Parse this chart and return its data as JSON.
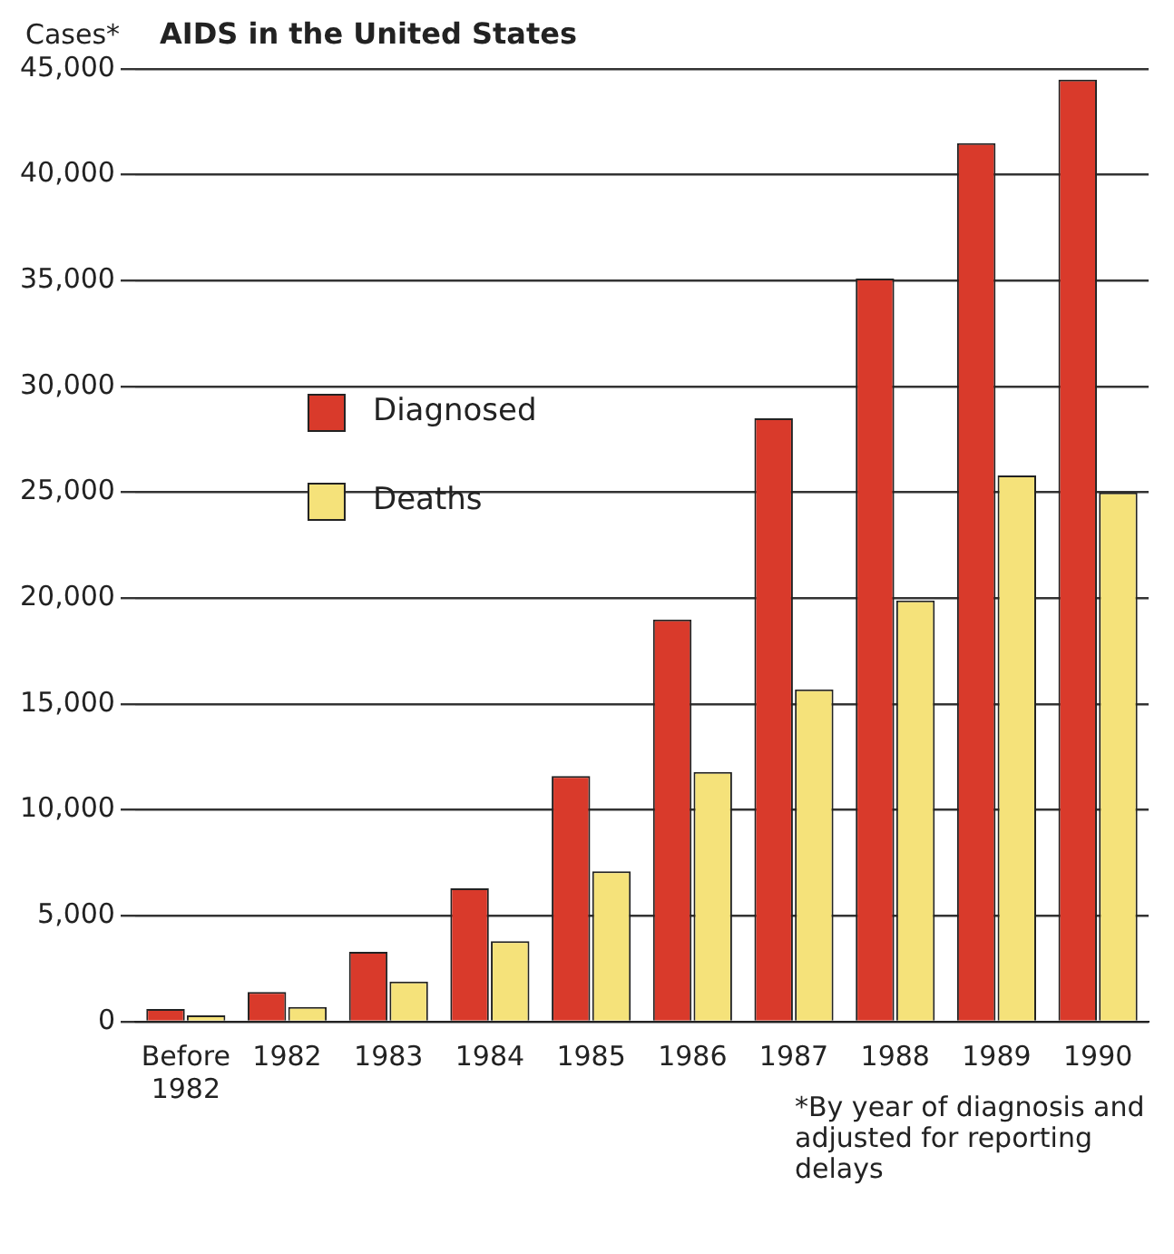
{
  "chart_data": {
    "type": "bar",
    "title": "AIDS in the United States",
    "ylabel": "Cases*",
    "categories": [
      "Before 1982",
      "1982",
      "1983",
      "1984",
      "1985",
      "1986",
      "1987",
      "1988",
      "1989",
      "1990"
    ],
    "series": [
      {
        "name": "Diagnosed",
        "color": "#d93a2b",
        "values": [
          600,
          1400,
          3300,
          6300,
          11600,
          19000,
          28500,
          35100,
          41500,
          44500
        ]
      },
      {
        "name": "Deaths",
        "color": "#f5e27a",
        "values": [
          300,
          700,
          1900,
          3800,
          7100,
          11800,
          15700,
          19900,
          25800,
          25000
        ]
      }
    ],
    "ylim": [
      0,
      45000
    ],
    "yticks": [
      {
        "value": 0,
        "label": "0"
      },
      {
        "value": 5000,
        "label": "5,000"
      },
      {
        "value": 10000,
        "label": "10,000"
      },
      {
        "value": 15000,
        "label": "15,000"
      },
      {
        "value": 20000,
        "label": "20,000"
      },
      {
        "value": 25000,
        "label": "25,000"
      },
      {
        "value": 30000,
        "label": "30,000"
      },
      {
        "value": 35000,
        "label": "35,000"
      },
      {
        "value": 40000,
        "label": "40,000"
      },
      {
        "value": 45000,
        "label": "45,000"
      }
    ],
    "grid": "y",
    "legend": "left",
    "annotations": [
      "*By year of diagnosis and adjusted for reporting delays"
    ]
  }
}
